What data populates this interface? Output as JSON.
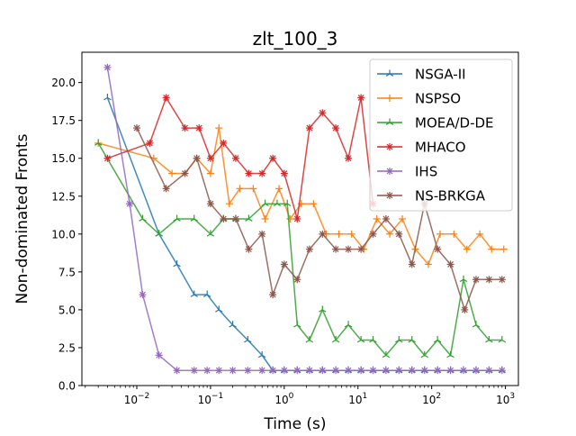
{
  "chart_data": {
    "type": "line",
    "title": "zlt_100_3",
    "xlabel": "Time (s)",
    "ylabel": "Non-dominated Fronts",
    "xscale": "log",
    "xlim": [
      0.0018,
      1500
    ],
    "ylim": [
      0,
      22
    ],
    "xticks": [
      {
        "value": 0.01,
        "base": "10",
        "exp": "−2"
      },
      {
        "value": 0.1,
        "base": "10",
        "exp": "−1"
      },
      {
        "value": 1,
        "base": "10",
        "exp": "0"
      },
      {
        "value": 10,
        "base": "10",
        "exp": "1"
      },
      {
        "value": 100,
        "base": "10",
        "exp": "2"
      },
      {
        "value": 1000,
        "base": "10",
        "exp": "3"
      }
    ],
    "yticks": [
      {
        "value": 0,
        "label": "0.0"
      },
      {
        "value": 2.5,
        "label": "2.5"
      },
      {
        "value": 5,
        "label": "5.0"
      },
      {
        "value": 7.5,
        "label": "7.5"
      },
      {
        "value": 10,
        "label": "10.0"
      },
      {
        "value": 12.5,
        "label": "12.5"
      },
      {
        "value": 15,
        "label": "15.0"
      },
      {
        "value": 17.5,
        "label": "17.5"
      },
      {
        "value": 20,
        "label": "20.0"
      }
    ],
    "legend_position": "top-right",
    "grid": false,
    "series": [
      {
        "name": "NSGA-II",
        "color": "#1f77b4",
        "marker": "tri",
        "points": [
          [
            0.004,
            19
          ],
          [
            0.02,
            10
          ],
          [
            0.035,
            8
          ],
          [
            0.06,
            6
          ],
          [
            0.09,
            6
          ],
          [
            0.13,
            5
          ],
          [
            0.2,
            4
          ],
          [
            0.32,
            3
          ],
          [
            0.5,
            2
          ],
          [
            0.7,
            1
          ],
          [
            1.0,
            1
          ],
          [
            1.5,
            1
          ],
          [
            2.2,
            1
          ],
          [
            3.3,
            1
          ],
          [
            5,
            1
          ],
          [
            7.4,
            1
          ],
          [
            11,
            1
          ],
          [
            16,
            1
          ],
          [
            24,
            1
          ],
          [
            36,
            1
          ],
          [
            54,
            1
          ],
          [
            80,
            1
          ],
          [
            120,
            1
          ],
          [
            180,
            1
          ],
          [
            270,
            1
          ],
          [
            400,
            1
          ],
          [
            600,
            1
          ],
          [
            900,
            1
          ]
        ]
      },
      {
        "name": "NSPSO",
        "color": "#ff7f0e",
        "marker": "plus",
        "points": [
          [
            0.003,
            16
          ],
          [
            0.017,
            15
          ],
          [
            0.03,
            14
          ],
          [
            0.045,
            14
          ],
          [
            0.065,
            15
          ],
          [
            0.1,
            14
          ],
          [
            0.13,
            17
          ],
          [
            0.18,
            12
          ],
          [
            0.25,
            13
          ],
          [
            0.38,
            13
          ],
          [
            0.55,
            11
          ],
          [
            0.85,
            13
          ],
          [
            1.2,
            11
          ],
          [
            1.7,
            12
          ],
          [
            2.5,
            12
          ],
          [
            3.7,
            10
          ],
          [
            5.5,
            10
          ],
          [
            8.2,
            10
          ],
          [
            12,
            9
          ],
          [
            18,
            11
          ],
          [
            27,
            10
          ],
          [
            40,
            11
          ],
          [
            60,
            9
          ],
          [
            90,
            8
          ],
          [
            130,
            10
          ],
          [
            200,
            10
          ],
          [
            300,
            9
          ],
          [
            450,
            10
          ],
          [
            650,
            9
          ],
          [
            950,
            9
          ]
        ]
      },
      {
        "name": "MOEA/D-DE",
        "color": "#2ca02c",
        "marker": "tri",
        "points": [
          [
            0.003,
            16
          ],
          [
            0.012,
            11
          ],
          [
            0.02,
            10
          ],
          [
            0.035,
            11
          ],
          [
            0.06,
            11
          ],
          [
            0.1,
            10
          ],
          [
            0.15,
            11
          ],
          [
            0.22,
            11
          ],
          [
            0.33,
            11
          ],
          [
            0.55,
            12
          ],
          [
            0.8,
            12
          ],
          [
            1.1,
            12
          ],
          [
            1.5,
            4
          ],
          [
            2.2,
            3
          ],
          [
            3.3,
            5
          ],
          [
            5,
            3
          ],
          [
            7.4,
            4
          ],
          [
            11,
            3
          ],
          [
            16,
            3
          ],
          [
            24,
            2
          ],
          [
            36,
            3
          ],
          [
            54,
            3
          ],
          [
            80,
            2
          ],
          [
            120,
            3
          ],
          [
            180,
            2
          ],
          [
            270,
            7
          ],
          [
            400,
            4
          ],
          [
            600,
            3
          ],
          [
            900,
            3
          ]
        ]
      },
      {
        "name": "MHACO",
        "color": "#d62728",
        "marker": "star",
        "points": [
          [
            0.004,
            15
          ],
          [
            0.015,
            16
          ],
          [
            0.025,
            19
          ],
          [
            0.045,
            17
          ],
          [
            0.07,
            17
          ],
          [
            0.1,
            15
          ],
          [
            0.15,
            16
          ],
          [
            0.22,
            15
          ],
          [
            0.33,
            14
          ],
          [
            0.5,
            14
          ],
          [
            0.7,
            15
          ],
          [
            1.0,
            14
          ],
          [
            1.5,
            11
          ],
          [
            2.2,
            17
          ],
          [
            3.3,
            18
          ],
          [
            5,
            17
          ],
          [
            7.4,
            15
          ],
          [
            11,
            19
          ],
          [
            16,
            12
          ]
        ]
      },
      {
        "name": "IHS",
        "color": "#9467bd",
        "marker": "star",
        "points": [
          [
            0.004,
            21
          ],
          [
            0.008,
            12
          ],
          [
            0.012,
            6
          ],
          [
            0.02,
            2
          ],
          [
            0.035,
            1
          ],
          [
            0.06,
            1
          ],
          [
            0.09,
            1
          ],
          [
            0.13,
            1
          ],
          [
            0.2,
            1
          ],
          [
            0.32,
            1
          ],
          [
            0.5,
            1
          ],
          [
            0.7,
            1
          ],
          [
            1.0,
            1
          ],
          [
            1.5,
            1
          ],
          [
            2.2,
            1
          ],
          [
            3.3,
            1
          ],
          [
            5,
            1
          ],
          [
            7.4,
            1
          ],
          [
            11,
            1
          ],
          [
            16,
            1
          ],
          [
            24,
            1
          ],
          [
            36,
            1
          ],
          [
            54,
            1
          ],
          [
            80,
            1
          ],
          [
            120,
            1
          ],
          [
            180,
            1
          ],
          [
            270,
            1
          ],
          [
            400,
            1
          ],
          [
            600,
            1
          ],
          [
            900,
            1
          ]
        ]
      },
      {
        "name": "NS-BRKGA",
        "color": "#8c564b",
        "marker": "star",
        "points": [
          [
            0.01,
            17
          ],
          [
            0.025,
            13
          ],
          [
            0.045,
            14
          ],
          [
            0.065,
            15
          ],
          [
            0.1,
            12
          ],
          [
            0.15,
            11
          ],
          [
            0.22,
            11
          ],
          [
            0.33,
            9
          ],
          [
            0.5,
            10
          ],
          [
            0.7,
            6
          ],
          [
            1.0,
            8
          ],
          [
            1.5,
            7
          ],
          [
            2.2,
            9
          ],
          [
            3.3,
            10
          ],
          [
            5,
            9
          ],
          [
            7.4,
            9
          ],
          [
            11,
            9
          ],
          [
            16,
            10
          ],
          [
            24,
            11
          ],
          [
            36,
            10
          ],
          [
            54,
            8
          ],
          [
            80,
            12
          ],
          [
            120,
            9
          ],
          [
            180,
            8
          ],
          [
            280,
            5
          ],
          [
            400,
            7
          ],
          [
            600,
            7
          ],
          [
            900,
            7
          ]
        ]
      }
    ]
  }
}
